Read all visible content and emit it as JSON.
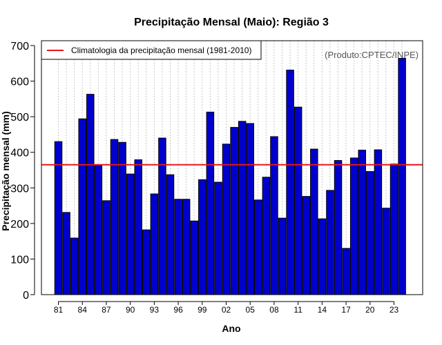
{
  "chart_data": {
    "type": "bar",
    "title": "Precipitação Mensal (Maio): Região 3",
    "xlabel": "Ano",
    "ylabel": "Precipitação mensal (mm)",
    "source_note": "(Produto:CPTEC/INPE)",
    "ylim": [
      0,
      700
    ],
    "yticks": [
      0,
      100,
      200,
      300,
      400,
      500,
      600,
      700
    ],
    "categories": [
      "1981",
      "1982",
      "1983",
      "1984",
      "1985",
      "1986",
      "1987",
      "1988",
      "1989",
      "1990",
      "1991",
      "1992",
      "1993",
      "1994",
      "1995",
      "1996",
      "1997",
      "1998",
      "1999",
      "2000",
      "2001",
      "2002",
      "2003",
      "2004",
      "2005",
      "2006",
      "2007",
      "2008",
      "2009",
      "2010",
      "2011",
      "2012",
      "2013",
      "2014",
      "2015",
      "2016",
      "2017",
      "2018",
      "2019",
      "2020",
      "2021",
      "2022",
      "2023",
      "2024"
    ],
    "values": [
      430,
      231,
      159,
      494,
      563,
      365,
      264,
      436,
      428,
      339,
      379,
      182,
      283,
      440,
      337,
      268,
      268,
      207,
      323,
      513,
      316,
      423,
      470,
      487,
      481,
      266,
      330,
      444,
      215,
      631,
      527,
      276,
      409,
      213,
      293,
      377,
      130,
      384,
      406,
      346,
      407,
      243,
      367,
      664
    ],
    "xtick_positions": [
      0,
      3,
      6,
      9,
      12,
      15,
      18,
      21,
      24,
      27,
      30,
      33,
      36,
      39,
      42
    ],
    "xtick_labels": [
      "81",
      "84",
      "87",
      "90",
      "93",
      "96",
      "99",
      "02",
      "05",
      "08",
      "11",
      "14",
      "17",
      "20",
      "23"
    ],
    "climatology": {
      "label": "Climatologia da precipitação mensal (1981-2010)",
      "value": 365,
      "color": "#e8161b"
    },
    "bar_color": "#0000cc",
    "legend_position": "top-left"
  }
}
